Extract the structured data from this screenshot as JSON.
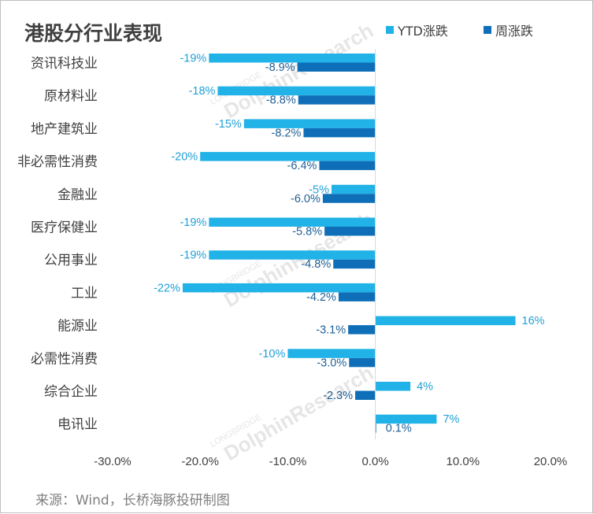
{
  "chart_data": {
    "type": "bar",
    "orientation": "horizontal",
    "title": "港股分行业表现",
    "categories": [
      "资讯科技业",
      "原材料业",
      "地产建筑业",
      "非必需性消费",
      "金融业",
      "医疗保健业",
      "公用事业",
      "工业",
      "能源业",
      "必需性消费",
      "综合企业",
      "电讯业"
    ],
    "series": [
      {
        "name": "YTD涨跌",
        "color": "#21b2e7",
        "label_color": "#21a0d6",
        "values": [
          -19,
          -18,
          -15,
          -20,
          -5,
          -19,
          -19,
          -22,
          16,
          -10,
          4,
          7
        ],
        "labels": [
          "-19%",
          "-18%",
          "-15%",
          "-20%",
          "-5%",
          "-19%",
          "-19%",
          "-22%",
          "16%",
          "-10%",
          "4%",
          "7%"
        ]
      },
      {
        "name": "周涨跌",
        "color": "#0e6fb8",
        "label_color": "#1f5f95",
        "values": [
          -8.9,
          -8.8,
          -8.2,
          -6.4,
          -6.0,
          -5.8,
          -4.8,
          -4.2,
          -3.1,
          -3.0,
          -2.3,
          0.1
        ],
        "labels": [
          "-8.9%",
          "-8.8%",
          "-8.2%",
          "-6.4%",
          "-6.0%",
          "-5.8%",
          "-4.8%",
          "-4.2%",
          "-3.1%",
          "-3.0%",
          "-2.3%",
          "0.1%"
        ]
      }
    ],
    "xlim": [
      -30,
      20
    ],
    "xticks": [
      -30,
      -20,
      -10,
      0,
      10,
      20
    ],
    "xtick_labels": [
      "-30.0%",
      "-20.0%",
      "-10.0%",
      "0.0%",
      "10.0%",
      "20.0%"
    ],
    "xlabel": "",
    "ylabel": "",
    "grid": false,
    "legend_position": "top-right"
  },
  "source_note": "来源：Wind，长桥海豚投研制图",
  "watermark": {
    "brand": "DolphinResearch",
    "sub": "LONGBRIDGE"
  }
}
